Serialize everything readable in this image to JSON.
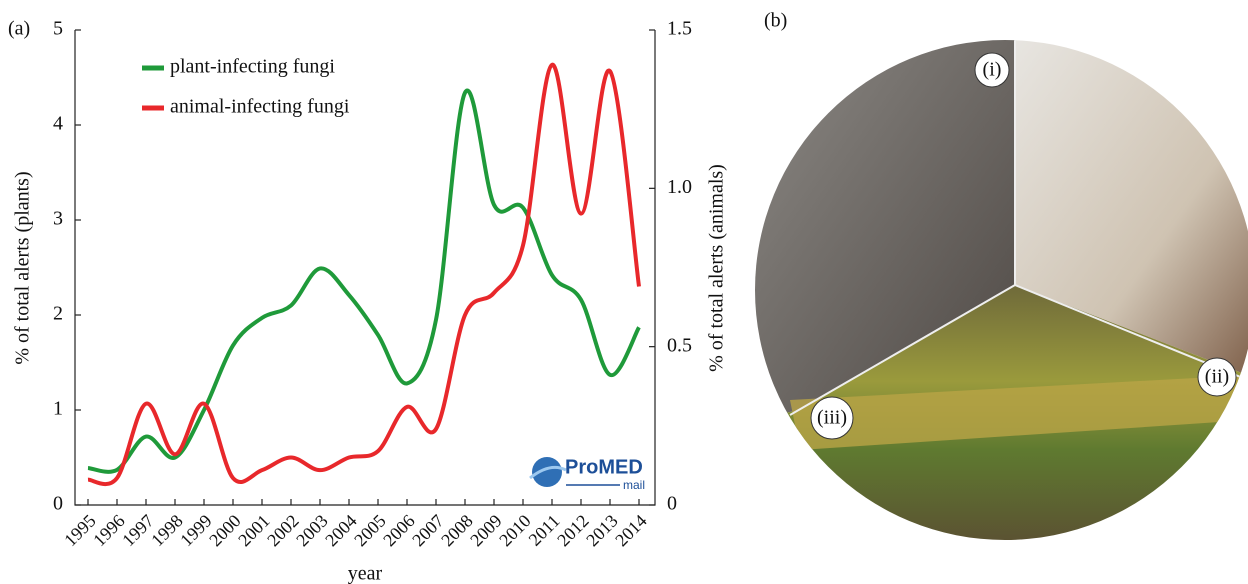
{
  "panel_labels": [
    "(a)",
    "(b)"
  ],
  "chart_data": {
    "type": "line",
    "xlabel": "year",
    "ylabel": "% of total alerts (plants)",
    "y2label": "% of total alerts (animals)",
    "categories": [
      "1995",
      "1996",
      "1997",
      "1998",
      "1999",
      "2000",
      "2001",
      "2002",
      "2003",
      "2004",
      "2005",
      "2006",
      "2007",
      "2008",
      "2009",
      "2010",
      "2011",
      "2012",
      "2013",
      "2014"
    ],
    "series": [
      {
        "name": "plant-infecting fungi",
        "color": "#1f9a3a",
        "values": [
          0.39,
          0.37,
          0.72,
          0.5,
          1.0,
          1.68,
          1.97,
          2.1,
          2.49,
          2.21,
          1.79,
          1.28,
          1.95,
          4.34,
          3.16,
          3.13,
          2.42,
          2.16,
          1.37,
          1.87
        ]
      },
      {
        "name": "animal-infecting fungi",
        "color": "#e8282b",
        "axis": "y2",
        "values": [
          0.08,
          0.085,
          0.32,
          0.16,
          0.32,
          0.085,
          0.11,
          0.15,
          0.11,
          0.15,
          0.17,
          0.31,
          0.24,
          0.6,
          0.67,
          0.82,
          1.39,
          0.92,
          1.37,
          0.69
        ]
      }
    ],
    "ylim": [
      0,
      5
    ],
    "yticks": [
      0,
      1,
      2,
      3,
      4,
      5
    ],
    "y2lim": [
      0,
      1.5
    ],
    "y2ticks": [
      0,
      0.5,
      {
        "value": 1,
        "label": "1.0"
      },
      1.5
    ],
    "legend": "upper left",
    "grid": false
  },
  "logo": {
    "name": "ProMED",
    "sub": "mail"
  },
  "photo": {
    "labels": [
      "(i)",
      "(ii)",
      "(iii)"
    ]
  }
}
